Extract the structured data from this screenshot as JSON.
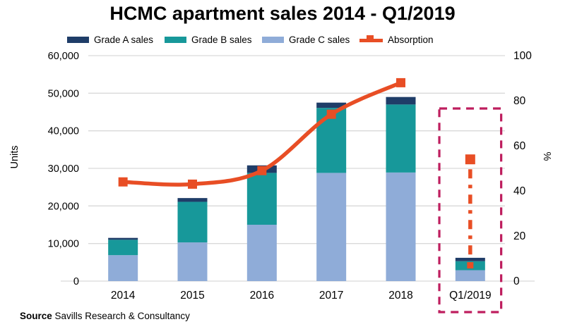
{
  "title": "HCMC apartment sales 2014 - Q1/2019",
  "source": {
    "prefix": "Source",
    "text": " Savills Research & Consultancy"
  },
  "legend": [
    {
      "label": "Grade A sales",
      "color": "#1F3D68",
      "type": "swatch"
    },
    {
      "label": "Grade B sales",
      "color": "#17989A",
      "type": "swatch"
    },
    {
      "label": "Grade C sales",
      "color": "#8FACD8",
      "type": "swatch"
    },
    {
      "label": "Absorption",
      "color": "#E84E25",
      "type": "line-marker"
    }
  ],
  "chart_data": {
    "type": "bar",
    "subtype": "stacked-bar-with-line",
    "categories": [
      "2014",
      "2015",
      "2016",
      "2017",
      "2018",
      "Q1/2019"
    ],
    "bar_series": [
      {
        "name": "Grade C sales",
        "color": "#8FACD8",
        "values": [
          6900,
          10300,
          15000,
          28800,
          28900,
          2900
        ]
      },
      {
        "name": "Grade B sales",
        "color": "#17989A",
        "values": [
          4100,
          10800,
          13800,
          17300,
          18100,
          2400
        ]
      },
      {
        "name": "Grade A sales",
        "color": "#1F3D68",
        "values": [
          500,
          1000,
          2000,
          1400,
          2000,
          900
        ]
      }
    ],
    "bar_totals": [
      11500,
      22100,
      30800,
      47500,
      49000,
      6200
    ],
    "line_series": {
      "name": "Absorption",
      "color": "#E84E25",
      "values_pct": [
        44,
        43,
        49,
        74,
        88,
        54
      ],
      "solid_through_index": 4,
      "q1_isolated_marker_pct": 54,
      "q1_dropline_end_pct": 7
    },
    "axes": {
      "left": {
        "label": "Units",
        "min": 0,
        "max": 60000,
        "step": 10000,
        "ticks": [
          "0",
          "10,000",
          "20,000",
          "30,000",
          "40,000",
          "50,000",
          "60,000"
        ]
      },
      "right": {
        "label": "%",
        "min": 0,
        "max": 100,
        "step": 20,
        "ticks": [
          "0",
          "20",
          "40",
          "60",
          "80",
          "100"
        ]
      }
    },
    "grid": true,
    "gridline_color": "#D9D9D9",
    "legend_position": "top",
    "highlight_box": {
      "category": "Q1/2019",
      "color": "#BE1E5E",
      "style": "dashed"
    }
  }
}
